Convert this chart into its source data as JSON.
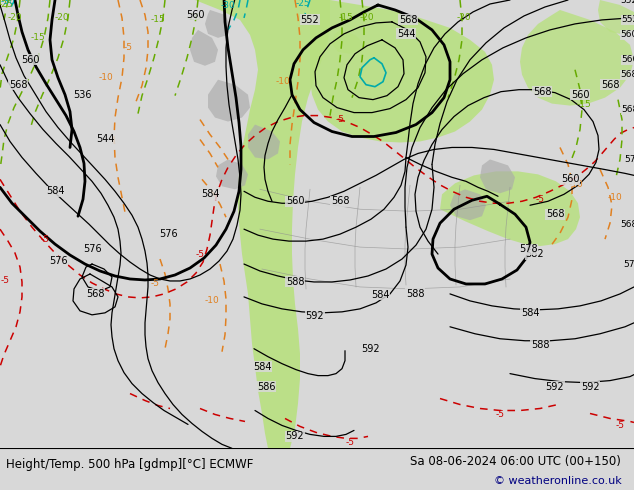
{
  "title_left": "Height/Temp. 500 hPa [gdmp][°C] ECMWF",
  "title_right": "Sa 08-06-2024 06:00 UTC (00+150)",
  "copyright": "© weatheronline.co.uk",
  "bg_color": "#d8d8d8",
  "land_green": "#b8e080",
  "land_gray": "#aaaaaa",
  "copyright_color": "#000080",
  "label_fontsize": 7.0,
  "title_fontsize": 8.5
}
